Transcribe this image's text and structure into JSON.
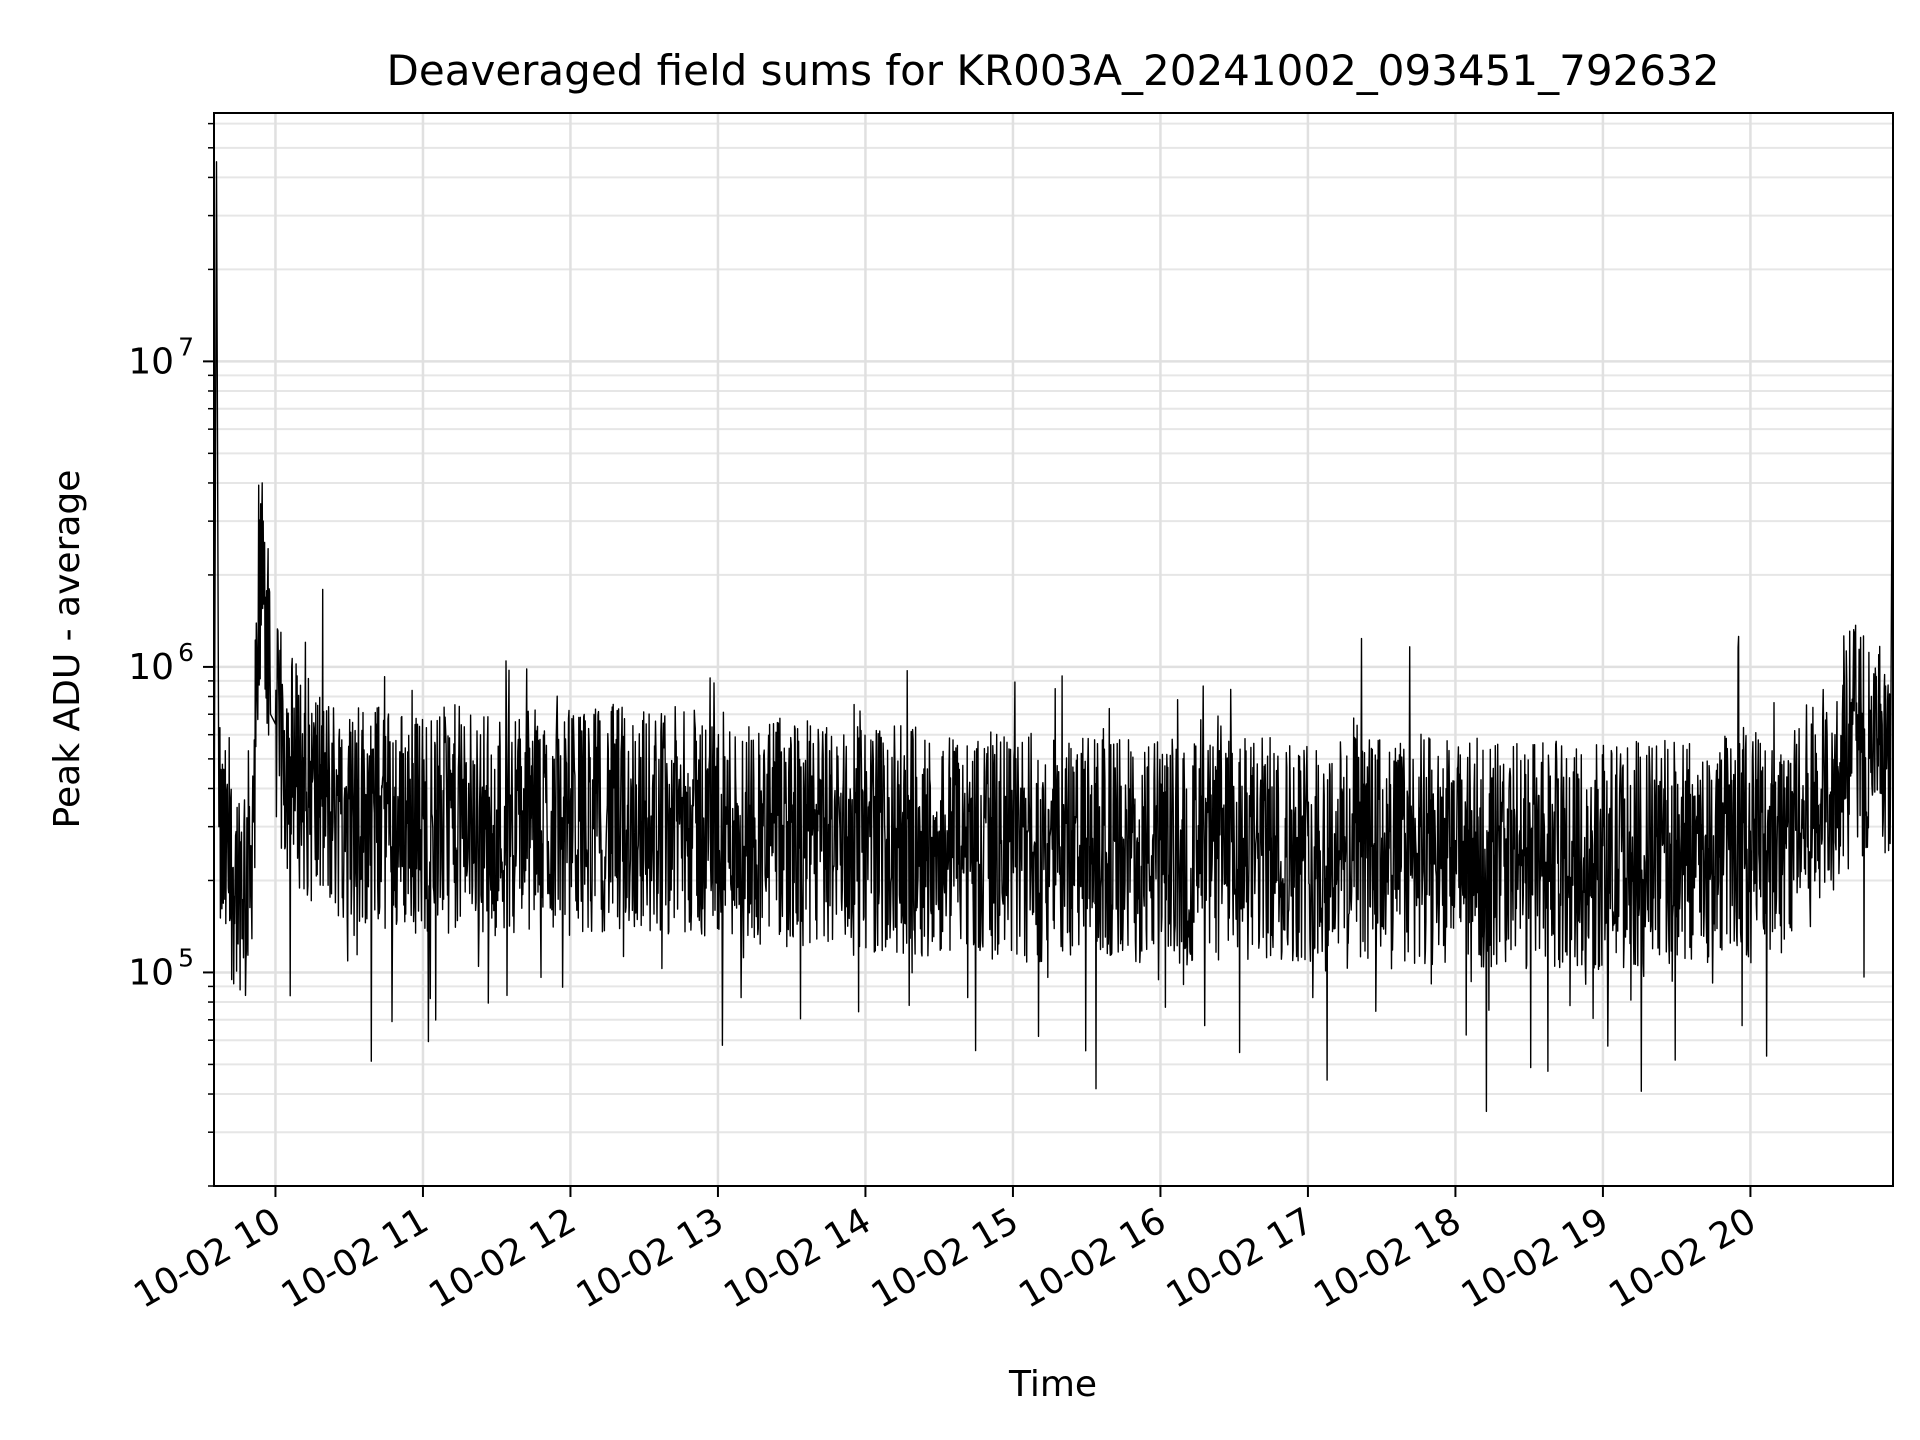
{
  "chart_data": {
    "type": "line",
    "title": "Deaveraged field sums for KR003A_20241002_093451_792632",
    "xlabel": "Time",
    "ylabel": "Peak ADU - average",
    "x_range": [
      "2024-10-02 09:35",
      "2024-10-02 20:58"
    ],
    "ylim": [
      20000,
      65000000
    ],
    "y_scale": "log",
    "x_ticks": [
      "10-02 10",
      "10-02 11",
      "10-02 12",
      "10-02 13",
      "10-02 14",
      "10-02 15",
      "10-02 16",
      "10-02 17",
      "10-02 18",
      "10-02 19",
      "10-02 20"
    ],
    "y_ticks": [
      {
        "value": 100000,
        "base": "10",
        "exp": "5"
      },
      {
        "value": 1000000,
        "base": "10",
        "exp": "6"
      },
      {
        "value": 10000000,
        "base": "10",
        "exp": "7"
      }
    ],
    "grid": true,
    "legend": "none",
    "line_color": "#000000",
    "series": [
      {
        "x": [
          "09:35",
          "09:36",
          "09:37",
          "09:40",
          "09:45",
          "09:50",
          "09:55",
          "09:58",
          "10:00",
          "10:05",
          "10:10",
          "10:15",
          "10:20",
          "10:25",
          "10:30",
          "10:40",
          "10:50",
          "11:00",
          "11:15",
          "11:30",
          "11:45",
          "12:00",
          "12:15",
          "12:30",
          "12:45",
          "13:00",
          "13:15",
          "13:30",
          "13:45",
          "14:00",
          "14:15",
          "14:30",
          "14:45",
          "15:00",
          "15:15",
          "15:30",
          "15:45",
          "16:00",
          "16:15",
          "16:30",
          "16:45",
          "17:00",
          "17:15",
          "17:30",
          "17:45",
          "18:00",
          "18:15",
          "18:30",
          "18:45",
          "19:00",
          "19:15",
          "19:30",
          "19:45",
          "20:00",
          "20:15",
          "20:30",
          "20:40",
          "20:50",
          "20:57",
          "20:58"
        ],
        "y": [
          200000,
          45000000,
          300000,
          250000,
          220000,
          260000,
          3000000,
          700000,
          650000,
          550000,
          480000,
          420000,
          400000,
          380000,
          370000,
          360000,
          350000,
          340000,
          350000,
          340000,
          345000,
          340000,
          350000,
          345000,
          340000,
          330000,
          320000,
          310000,
          305000,
          300000,
          295000,
          290000,
          285000,
          280000,
          278000,
          275000,
          273000,
          272000,
          270000,
          270000,
          275000,
          280000,
          278000,
          275000,
          272000,
          270000,
          268000,
          265000,
          262000,
          260000,
          265000,
          270000,
          280000,
          290000,
          300000,
          400000,
          650000,
          600000,
          400000,
          16000000
        ]
      }
    ]
  }
}
